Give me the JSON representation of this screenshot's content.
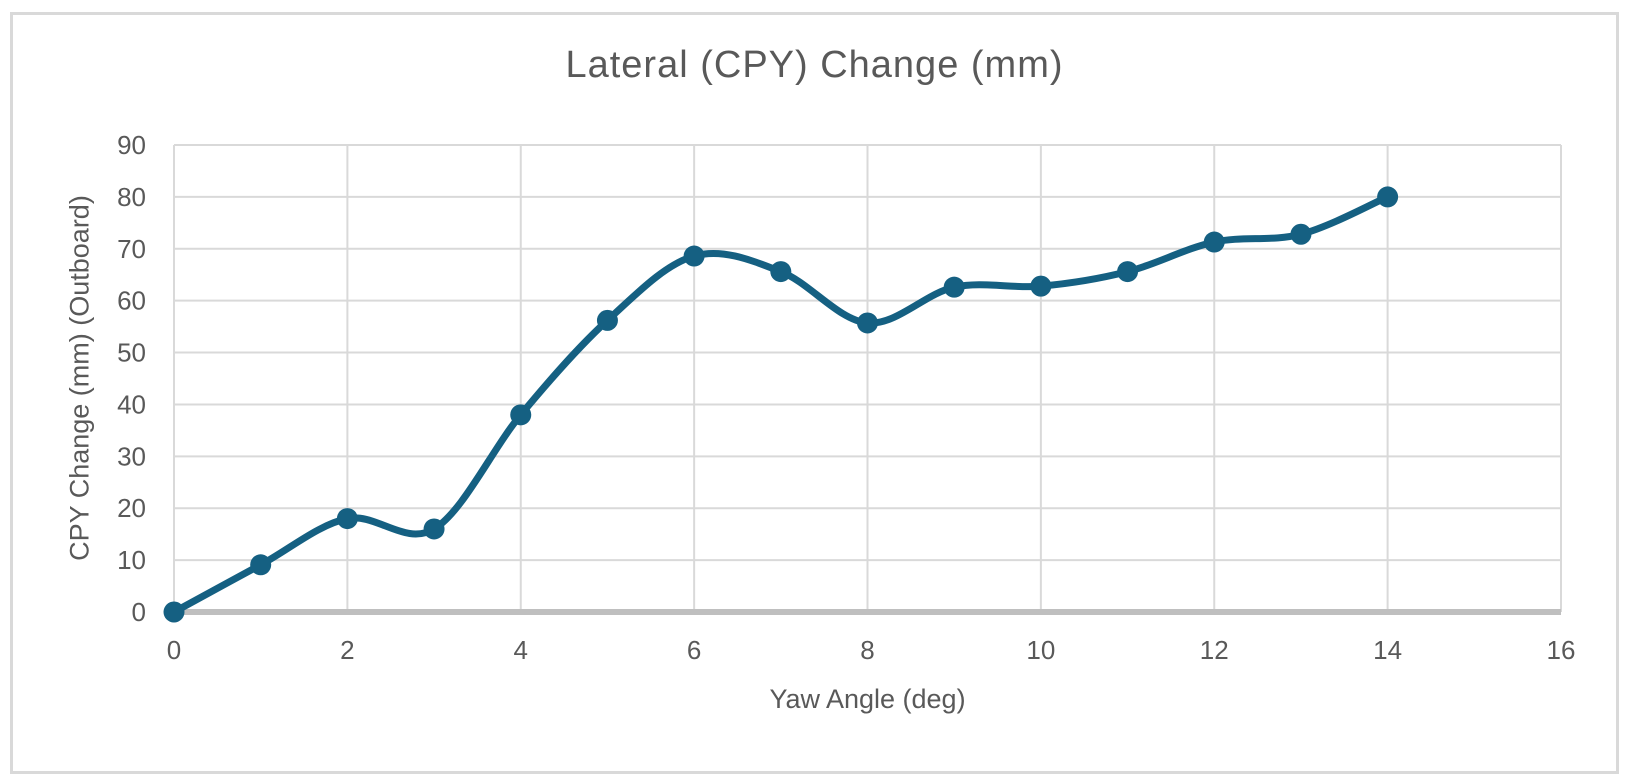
{
  "chart_data": {
    "type": "line",
    "title": "Lateral (CPY) Change (mm)",
    "xlabel": "Yaw Angle (deg)",
    "ylabel": "CPY Change (mm) (Outboard)",
    "x": [
      0,
      1,
      2,
      3,
      4,
      5,
      6,
      7,
      8,
      9,
      10,
      11,
      12,
      13,
      14
    ],
    "y": [
      0,
      9.1,
      18,
      16,
      38,
      56.2,
      68.6,
      65.6,
      55.7,
      62.6,
      62.8,
      65.6,
      71.3,
      72.8,
      80
    ],
    "xlim": [
      0,
      16
    ],
    "ylim": [
      0,
      90
    ],
    "xticks": [
      0,
      2,
      4,
      6,
      8,
      10,
      12,
      14,
      16
    ],
    "yticks": [
      0,
      10,
      20,
      30,
      40,
      50,
      60,
      70,
      80,
      90
    ],
    "grid": true,
    "legend_position": "none",
    "smooth_line": true,
    "colors": {
      "line": "#156082",
      "marker": "#156082",
      "gridline": "#d9d9d9",
      "axis_line": "#bfbfbf",
      "text": "#595959",
      "border": "#d9d9d9",
      "background": "#ffffff"
    }
  }
}
